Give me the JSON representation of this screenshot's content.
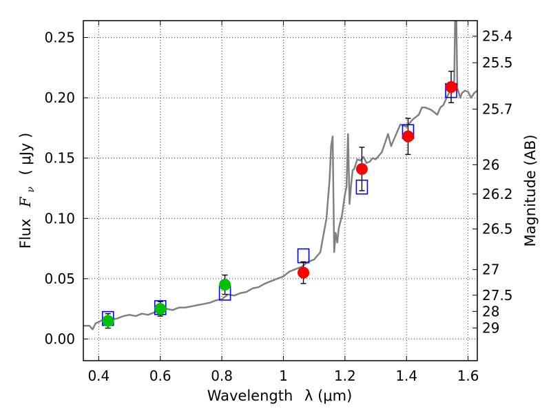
{
  "chart_data": {
    "type": "scatter",
    "title": "",
    "xlabel": "Wavelength",
    "xlabel_symbol": "λ (μm)",
    "ylabel": "Flux",
    "ylabel_symbol_main": "F",
    "ylabel_symbol_sub": "ν",
    "ylabel_unit": "( μJy )",
    "ylabel_right": "Magnitude (AB)",
    "xlim": [
      0.35,
      1.63
    ],
    "ylim": [
      -0.018,
      0.264
    ],
    "x_ticks": [
      {
        "v": 0.4,
        "label": "0.4"
      },
      {
        "v": 0.6,
        "label": "0.6"
      },
      {
        "v": 0.8,
        "label": "0.8"
      },
      {
        "v": 1.0,
        "label": "1"
      },
      {
        "v": 1.2,
        "label": "1.2"
      },
      {
        "v": 1.4,
        "label": "1.4"
      },
      {
        "v": 1.6,
        "label": "1.6"
      }
    ],
    "y_ticks": [
      {
        "v": 0.0,
        "label": "0.00"
      },
      {
        "v": 0.05,
        "label": "0.05"
      },
      {
        "v": 0.1,
        "label": "0.10"
      },
      {
        "v": 0.15,
        "label": "0.15"
      },
      {
        "v": 0.2,
        "label": "0.20"
      },
      {
        "v": 0.25,
        "label": "0.25"
      }
    ],
    "mag_ticks": [
      {
        "v": 25.4,
        "label": "25.4"
      },
      {
        "v": 25.5,
        "label": "25.5"
      },
      {
        "v": 25.7,
        "label": "25.7"
      },
      {
        "v": 26.0,
        "label": "26"
      },
      {
        "v": 26.2,
        "label": "26.2"
      },
      {
        "v": 26.5,
        "label": "26.5"
      },
      {
        "v": 27.0,
        "label": "27"
      },
      {
        "v": 27.5,
        "label": "27.5"
      },
      {
        "v": 28.0,
        "label": "28"
      },
      {
        "v": 29.0,
        "label": "29"
      }
    ],
    "grid": true,
    "series": [
      {
        "kind": "line",
        "color": "#808080",
        "x": [
          0.35,
          0.37,
          0.38,
          0.39,
          0.4,
          0.42,
          0.44,
          0.46,
          0.48,
          0.5,
          0.52,
          0.54,
          0.56,
          0.58,
          0.6,
          0.62,
          0.64,
          0.66,
          0.68,
          0.7,
          0.72,
          0.74,
          0.76,
          0.78,
          0.8,
          0.82,
          0.84,
          0.86,
          0.88,
          0.9,
          0.92,
          0.94,
          0.96,
          0.98,
          1.0,
          1.02,
          1.04,
          1.06,
          1.08,
          1.1,
          1.12,
          1.14,
          1.15,
          1.155,
          1.16,
          1.165,
          1.17,
          1.175,
          1.18,
          1.19,
          1.2,
          1.205,
          1.21,
          1.215,
          1.22,
          1.225,
          1.23,
          1.24,
          1.25,
          1.26,
          1.27,
          1.28,
          1.29,
          1.3,
          1.32,
          1.34,
          1.35,
          1.36,
          1.38,
          1.4,
          1.42,
          1.44,
          1.45,
          1.46,
          1.48,
          1.5,
          1.51,
          1.52,
          1.53,
          1.54,
          1.55,
          1.555,
          1.56,
          1.565,
          1.57,
          1.575,
          1.58,
          1.59,
          1.6,
          1.61,
          1.62,
          1.63
        ],
        "y": [
          0.011,
          0.011,
          0.008,
          0.013,
          0.014,
          0.017,
          0.016,
          0.017,
          0.019,
          0.02,
          0.019,
          0.021,
          0.02,
          0.022,
          0.024,
          0.025,
          0.024,
          0.026,
          0.026,
          0.027,
          0.028,
          0.029,
          0.03,
          0.032,
          0.033,
          0.037,
          0.036,
          0.038,
          0.039,
          0.042,
          0.043,
          0.046,
          0.048,
          0.05,
          0.052,
          0.056,
          0.058,
          0.06,
          0.064,
          0.066,
          0.072,
          0.1,
          0.132,
          0.16,
          0.168,
          0.072,
          0.088,
          0.08,
          0.092,
          0.102,
          0.12,
          0.126,
          0.17,
          0.112,
          0.128,
          0.14,
          0.141,
          0.149,
          0.148,
          0.151,
          0.146,
          0.147,
          0.15,
          0.149,
          0.155,
          0.17,
          0.16,
          0.166,
          0.178,
          0.176,
          0.182,
          0.186,
          0.192,
          0.192,
          0.19,
          0.186,
          0.192,
          0.194,
          0.2,
          0.205,
          0.208,
          0.215,
          0.3,
          0.208,
          0.204,
          0.2,
          0.204,
          0.206,
          0.205,
          0.2,
          0.204,
          0.206
        ]
      },
      {
        "kind": "markers",
        "name": "",
        "color": "#00c000",
        "x": [
          0.43,
          0.6,
          0.81
        ],
        "y": [
          0.015,
          0.025,
          0.045
        ],
        "err": [
          0.006,
          0.006,
          0.008
        ]
      },
      {
        "kind": "markers",
        "name": "",
        "color": "#ff0000",
        "x": [
          1.065,
          1.255,
          1.405,
          1.545
        ],
        "y": [
          0.055,
          0.141,
          0.168,
          0.209
        ],
        "err": [
          0.009,
          0.018,
          0.015,
          0.013
        ]
      },
      {
        "kind": "model-boxes",
        "name": "",
        "color": "#0000ff",
        "x": [
          0.43,
          0.6,
          0.81,
          1.065,
          1.255,
          1.405,
          1.545
        ],
        "y": [
          0.017,
          0.026,
          0.038,
          0.069,
          0.126,
          0.172,
          0.206
        ]
      }
    ]
  }
}
